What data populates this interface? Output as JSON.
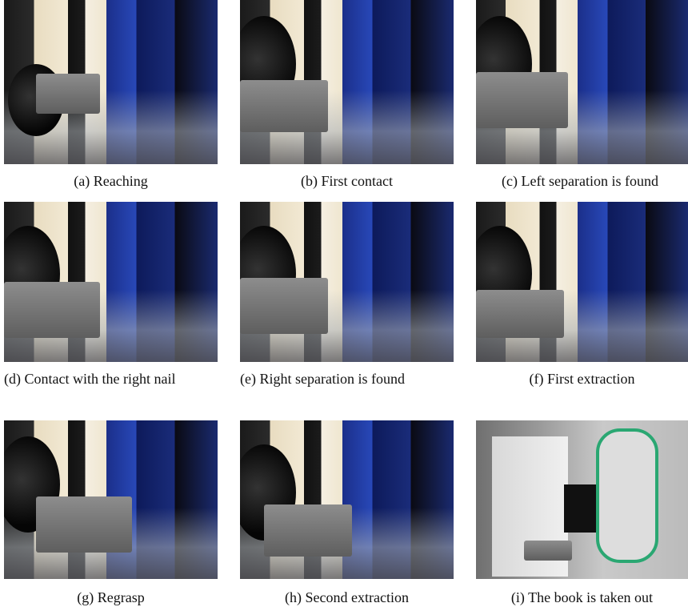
{
  "captions": [
    "(a) Reaching",
    "(b) First contact",
    "(c) Left separation is found",
    "(d) Contact with the right nail",
    "(e) Right separation is found",
    "(f) First extraction",
    "(g) Regrasp",
    "(h) Second extraction",
    "(i) The book is taken out"
  ]
}
